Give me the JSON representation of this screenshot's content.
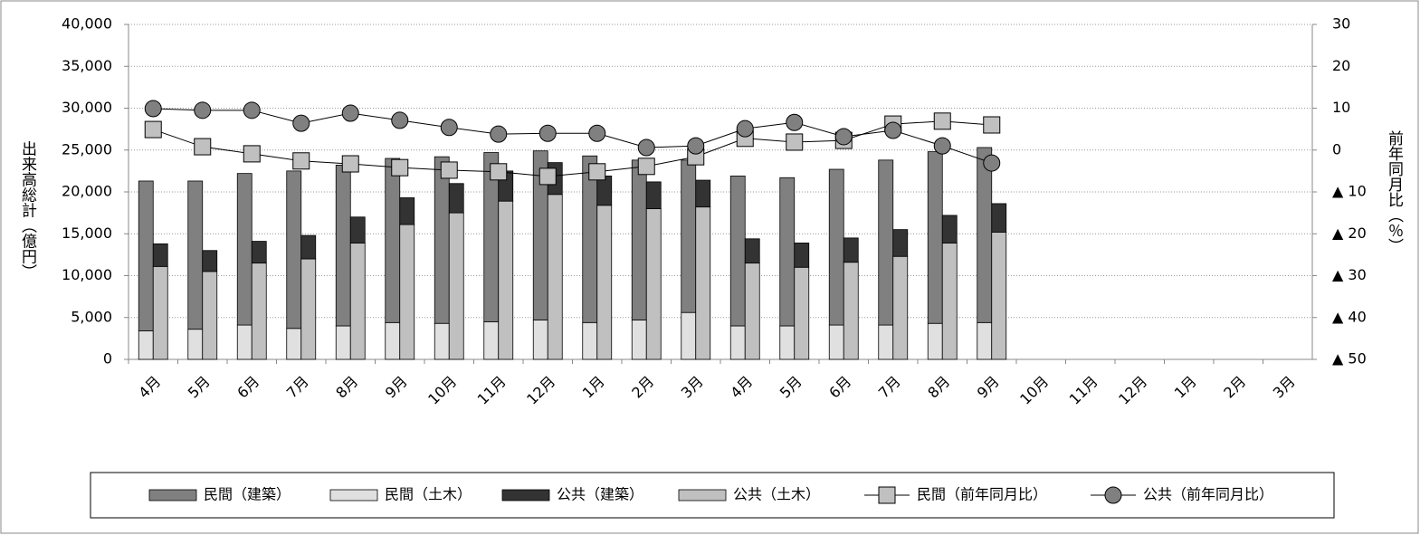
{
  "chart_data": {
    "type": "bar",
    "categories": [
      "4月",
      "5月",
      "6月",
      "7月",
      "8月",
      "9月",
      "10月",
      "11月",
      "12月",
      "1月",
      "2月",
      "3月",
      "4月",
      "5月",
      "6月",
      "7月",
      "8月",
      "9月",
      "10月",
      "11月",
      "12月",
      "1月",
      "2月",
      "3月"
    ],
    "y_label": "出来高総計（億円）",
    "y2_label": "前年同月比（％）",
    "ylim": [
      0,
      40000
    ],
    "yticks": [
      0,
      {
        "value": 5000,
        "label": "5,000"
      },
      {
        "value": 10000,
        "label": "10,000"
      },
      {
        "value": 15000,
        "label": "15,000"
      },
      {
        "value": 20000,
        "label": "20,000"
      },
      {
        "value": 25000,
        "label": "25,000"
      },
      {
        "value": 30000,
        "label": "30,000"
      },
      {
        "value": 35000,
        "label": "35,000"
      },
      {
        "value": 40000,
        "label": "40,000"
      }
    ],
    "y2lim": [
      -50,
      30
    ],
    "y2ticks": [
      30,
      20,
      10,
      0,
      {
        "value": -10,
        "label": "▲ 10"
      },
      {
        "value": -20,
        "label": "▲ 20"
      },
      {
        "value": -30,
        "label": "▲ 30"
      },
      {
        "value": -40,
        "label": "▲ 40"
      },
      {
        "value": -50,
        "label": "▲ 50"
      }
    ],
    "grid": true,
    "series": [
      {
        "name": "民間（建築）",
        "type": "bar",
        "stack": 0,
        "color": "#808080",
        "values": [
          17900,
          17700,
          18100,
          18800,
          19200,
          19600,
          19900,
          20200,
          20200,
          19900,
          19100,
          18200,
          17900,
          17700,
          18600,
          19700,
          20500,
          20900,
          null,
          null,
          null,
          null,
          null,
          null
        ]
      },
      {
        "name": "民間（土木）",
        "type": "bar",
        "stack": 0,
        "color": "#e0e0e0",
        "values": [
          3400,
          3600,
          4100,
          3700,
          4000,
          4400,
          4300,
          4500,
          4700,
          4400,
          4700,
          5600,
          4000,
          4000,
          4100,
          4100,
          4300,
          4400,
          null,
          null,
          null,
          null,
          null,
          null
        ]
      },
      {
        "name": "公共（建築）",
        "type": "bar",
        "stack": 1,
        "color": "#333333",
        "values": [
          2700,
          2500,
          2600,
          2800,
          3100,
          3200,
          3500,
          3600,
          3800,
          3500,
          3200,
          3200,
          2900,
          2900,
          2900,
          3200,
          3300,
          3400,
          null,
          null,
          null,
          null,
          null,
          null
        ]
      },
      {
        "name": "公共（土木）",
        "type": "bar",
        "stack": 1,
        "color": "#c0c0c0",
        "values": [
          11100,
          10500,
          11500,
          12000,
          13900,
          16100,
          17500,
          18900,
          19700,
          18400,
          18000,
          18200,
          11500,
          11000,
          11600,
          12300,
          13900,
          15200,
          null,
          null,
          null,
          null,
          null,
          null
        ]
      },
      {
        "name": "民間（前年同月比）",
        "type": "line",
        "axis": "y2",
        "marker": "square",
        "color": "#c0c0c0",
        "values": [
          4.9,
          0.8,
          -0.9,
          -2.6,
          -3.3,
          -4.2,
          -4.8,
          -5.2,
          -6.3,
          -5.2,
          -3.9,
          -1.6,
          2.8,
          1.9,
          2.3,
          6.2,
          6.9,
          6.0,
          null,
          null,
          null,
          null,
          null,
          null
        ]
      },
      {
        "name": "公共（前年同月比）",
        "type": "line",
        "axis": "y2",
        "marker": "circle",
        "color": "#808080",
        "values": [
          9.9,
          9.5,
          9.5,
          6.4,
          8.8,
          7.1,
          5.4,
          3.8,
          4.0,
          4.0,
          0.6,
          1.0,
          5.1,
          6.6,
          3.2,
          4.7,
          1.0,
          -3.1,
          null,
          null,
          null,
          null,
          null,
          null
        ]
      }
    ]
  }
}
